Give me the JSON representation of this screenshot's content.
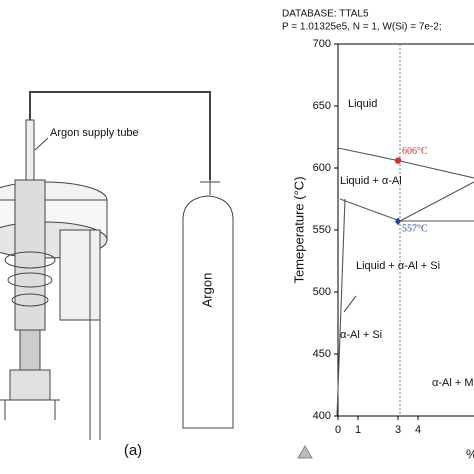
{
  "panel_a": {
    "tube_label": "Argon supply tube",
    "bottle_label": "Argon",
    "panel_label": "(a)"
  },
  "chart_data": {
    "type": "scatter",
    "title": "DATABASE: TTAL5",
    "subtitle": "P = 1.01325e5, N = 1, W(Si) = 7e-2;",
    "ylabel": "Temeperature (°C)",
    "xlabel": "%",
    "x": [
      3,
      3
    ],
    "values": [
      606,
      557
    ],
    "value_labels": [
      "606°C",
      "557°C"
    ],
    "colors": [
      "#d9302c",
      "#2b3f9e"
    ],
    "xlim": [
      0,
      7
    ],
    "xticks": [
      0,
      1,
      3,
      4
    ],
    "ylim": [
      400,
      700
    ],
    "yticks": [
      400,
      450,
      500,
      550,
      600,
      650,
      700
    ],
    "annotations": [
      "Liquid",
      "Liquid + α-Al",
      "Liquid + α-Al + Si",
      "α-Al + Si",
      "α-Al + M"
    ]
  }
}
